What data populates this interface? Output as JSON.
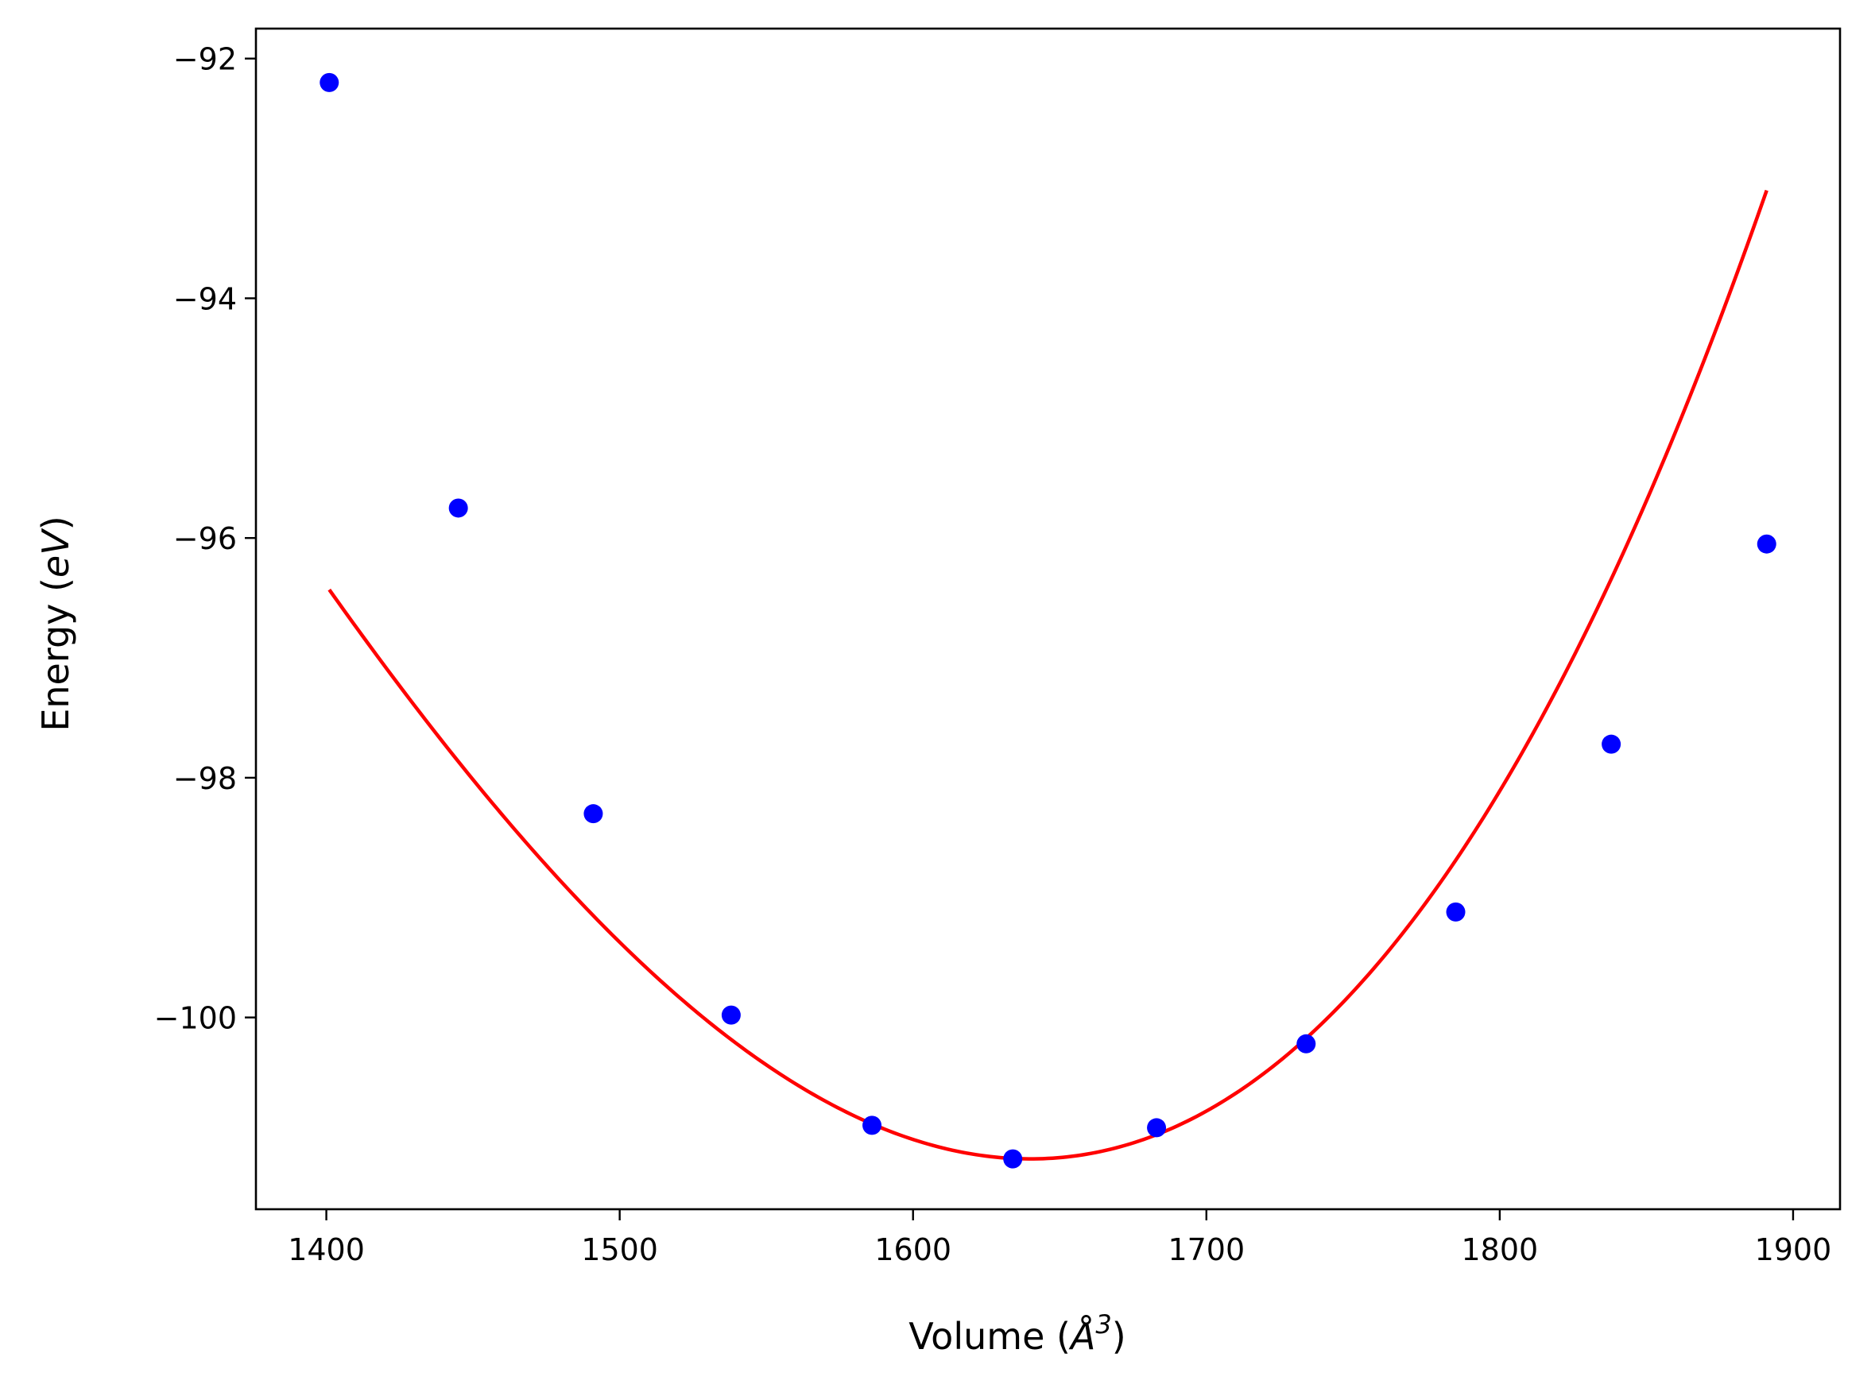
{
  "chart_data": {
    "type": "line",
    "xlabel": "Volume (Å³)",
    "xlabel_parts": {
      "main": "Volume (",
      "unit": "Å",
      "sup": "3",
      "close": ")"
    },
    "ylabel": "Energy (eV)",
    "ylabel_parts": {
      "main": "Energy (",
      "unit": "eV",
      "close": ")"
    },
    "xlim": [
      1376,
      1916
    ],
    "ylim": [
      -101.6,
      -91.75
    ],
    "x_ticks": [
      1400,
      1500,
      1600,
      1700,
      1800,
      1900
    ],
    "x_tick_labels": [
      "1400",
      "1500",
      "1600",
      "1700",
      "1800",
      "1900"
    ],
    "y_ticks": [
      -92,
      -94,
      -96,
      -98,
      -100
    ],
    "y_tick_labels": [
      "−92",
      "−94",
      "−96",
      "−98",
      "−100"
    ],
    "grid": false,
    "series": [
      {
        "kind": "scatter",
        "color": "#0000ff",
        "x": [
          1401,
          1445,
          1491,
          1538,
          1586,
          1634,
          1683,
          1734,
          1785,
          1838,
          1891
        ],
        "y": [
          -92.2,
          -95.75,
          -98.3,
          -99.98,
          -100.9,
          -101.18,
          -100.92,
          -100.22,
          -99.12,
          -97.72,
          -96.05
        ]
      },
      {
        "kind": "line",
        "color": "#ff0000",
        "fit": {
          "type": "cubic",
          "x0": 1640,
          "coefficients": [
            -101.18,
            5e-06,
            0.00010515,
            9.2e-08
          ]
        },
        "x_range": [
          1401,
          1891
        ]
      }
    ]
  }
}
